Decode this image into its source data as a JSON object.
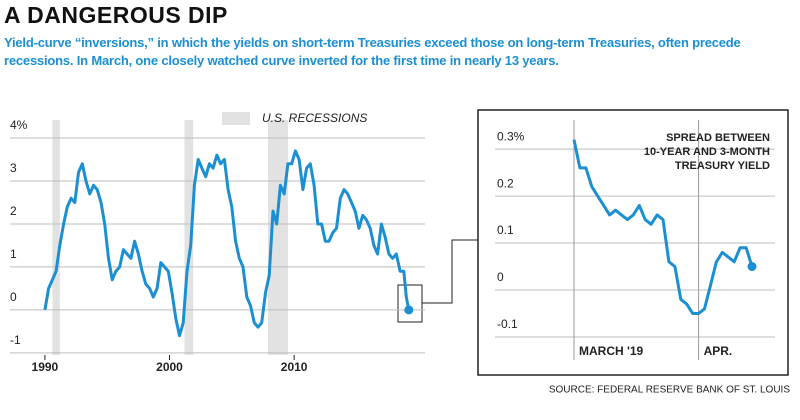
{
  "title": "A DANGEROUS DIP",
  "subtitle": "Yield-curve “inversions,” in which the yields on short-term Treasuries exceed those on long-term Treasuries, often precede recessions. In March, one closely watched curve inverted for the first time in nearly 13 years.",
  "source": "SOURCE: FEDERAL RESERVE BANK OF ST. LOUIS",
  "chart_data": [
    {
      "type": "line",
      "color": "#1b8fd2",
      "x": [
        1990.0,
        1990.3,
        1990.6,
        1990.9,
        1991.2,
        1991.5,
        1991.8,
        1992.1,
        1992.4,
        1992.7,
        1993.0,
        1993.3,
        1993.6,
        1993.9,
        1994.2,
        1994.5,
        1994.8,
        1995.1,
        1995.4,
        1995.7,
        1996.0,
        1996.3,
        1996.6,
        1996.9,
        1997.2,
        1997.5,
        1997.8,
        1998.1,
        1998.4,
        1998.7,
        1999.0,
        1999.3,
        1999.6,
        1999.9,
        2000.2,
        2000.5,
        2000.8,
        2001.1,
        2001.4,
        2001.7,
        2002.0,
        2002.3,
        2002.6,
        2002.9,
        2003.2,
        2003.5,
        2003.8,
        2004.1,
        2004.4,
        2004.7,
        2005.0,
        2005.3,
        2005.6,
        2005.9,
        2006.2,
        2006.5,
        2006.8,
        2007.1,
        2007.4,
        2007.7,
        2008.0,
        2008.3,
        2008.6,
        2008.9,
        2009.2,
        2009.5,
        2009.8,
        2010.1,
        2010.4,
        2010.7,
        2011.0,
        2011.3,
        2011.6,
        2011.9,
        2012.2,
        2012.5,
        2012.8,
        2013.1,
        2013.4,
        2013.7,
        2014.0,
        2014.3,
        2014.6,
        2014.9,
        2015.2,
        2015.5,
        2015.8,
        2016.1,
        2016.4,
        2016.7,
        2017.0,
        2017.3,
        2017.6,
        2017.9,
        2018.2,
        2018.5,
        2018.8,
        2019.0,
        2019.2
      ],
      "values": [
        0.0,
        0.5,
        0.7,
        0.9,
        1.5,
        2.0,
        2.4,
        2.6,
        2.5,
        3.2,
        3.4,
        3.0,
        2.7,
        2.9,
        2.8,
        2.5,
        2.0,
        1.2,
        0.7,
        0.9,
        1.0,
        1.4,
        1.3,
        1.2,
        1.6,
        1.3,
        0.9,
        0.6,
        0.5,
        0.3,
        0.5,
        1.1,
        1.0,
        0.9,
        0.4,
        -0.2,
        -0.6,
        -0.3,
        0.9,
        1.5,
        2.9,
        3.5,
        3.3,
        3.1,
        3.4,
        3.3,
        3.6,
        3.4,
        3.5,
        2.8,
        2.4,
        1.6,
        1.2,
        1.0,
        0.3,
        0.1,
        -0.3,
        -0.4,
        -0.3,
        0.4,
        0.8,
        2.3,
        2.0,
        2.9,
        2.7,
        3.4,
        3.4,
        3.7,
        3.5,
        2.8,
        3.3,
        3.4,
        2.9,
        2.0,
        2.0,
        1.6,
        1.6,
        1.8,
        1.9,
        2.6,
        2.8,
        2.7,
        2.5,
        2.3,
        1.9,
        2.2,
        2.1,
        1.9,
        1.5,
        1.3,
        2.0,
        1.7,
        1.3,
        1.2,
        1.3,
        0.9,
        0.9,
        0.3,
        0.0
      ],
      "xlim": [
        1987.2,
        2020.5
      ],
      "xticks": [
        1990,
        2000,
        2010
      ],
      "ylim": [
        -1.05,
        4.42
      ],
      "yticks": [
        {
          "value": 4,
          "label": "4%"
        },
        3,
        2,
        1,
        0,
        -1
      ],
      "grid": true,
      "recessions": {
        "name": "U.S. RECESSIONS",
        "color": "#e2e2e2",
        "spans": [
          [
            1990.6,
            1991.2
          ],
          [
            2001.2,
            2001.9
          ],
          [
            2007.9,
            2009.5
          ]
        ]
      }
    },
    {
      "type": "line",
      "color": "#1b8fd2",
      "categories": [
        "MARCH '19",
        null,
        null,
        null,
        null,
        null,
        null,
        null,
        null,
        null,
        null,
        null,
        null,
        null,
        null,
        null,
        null,
        null,
        null,
        null,
        null,
        "APR.",
        null,
        null,
        null,
        null,
        null,
        null,
        null,
        null,
        null
      ],
      "values": [
        0.32,
        0.26,
        0.26,
        0.22,
        0.2,
        0.18,
        0.16,
        0.17,
        0.16,
        0.15,
        0.16,
        0.18,
        0.15,
        0.14,
        0.16,
        0.15,
        0.06,
        0.05,
        -0.02,
        -0.03,
        -0.05,
        -0.05,
        -0.04,
        0.01,
        0.06,
        0.08,
        0.07,
        0.06,
        0.09,
        0.09,
        0.05
      ],
      "ylim": [
        -0.149,
        0.362
      ],
      "yticks": [
        {
          "value": 0.3,
          "label": "0.3%"
        },
        0.2,
        0.1,
        0,
        -0.1
      ],
      "grid": true,
      "annotation": [
        "SPREAD BETWEEN",
        "10-YEAR AND 3-MONTH",
        "TREASURY YIELD"
      ]
    }
  ]
}
